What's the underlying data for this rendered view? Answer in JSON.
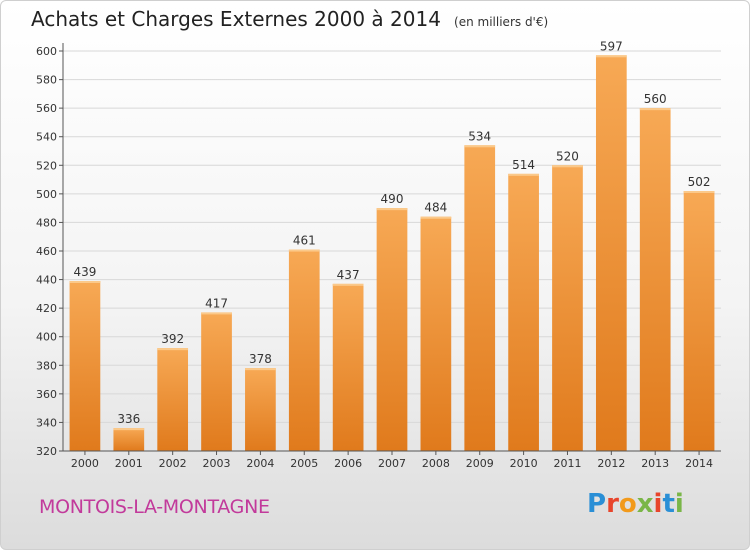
{
  "header": {
    "title": "Achats et Charges Externes 2000 à 2014",
    "subtitle": "(en milliers d'€)"
  },
  "footer": {
    "place": "MONTOIS-LA-MONTAGNE",
    "logo_text": "Proxiti",
    "logo_colors": [
      "#2a8fd6",
      "#e8452c",
      "#f29a1b",
      "#7ab648",
      "#e8452c",
      "#2a8fd6",
      "#7ab648"
    ]
  },
  "colors": {
    "bar_light": "#f7a955",
    "bar_dark": "#e07a1c",
    "grid": "#d8d8d8",
    "axis": "#555555"
  },
  "chart_data": {
    "type": "bar",
    "categories": [
      "2000",
      "2001",
      "2002",
      "2003",
      "2004",
      "2005",
      "2006",
      "2007",
      "2008",
      "2009",
      "2010",
      "2011",
      "2012",
      "2013",
      "2014"
    ],
    "values": [
      439,
      336,
      392,
      417,
      378,
      461,
      437,
      490,
      484,
      534,
      514,
      520,
      597,
      560,
      502
    ],
    "ylim": [
      320,
      600
    ],
    "yticks": [
      320,
      340,
      360,
      380,
      400,
      420,
      440,
      460,
      480,
      500,
      520,
      540,
      560,
      580,
      600
    ],
    "grid": true,
    "data_labels": true
  }
}
